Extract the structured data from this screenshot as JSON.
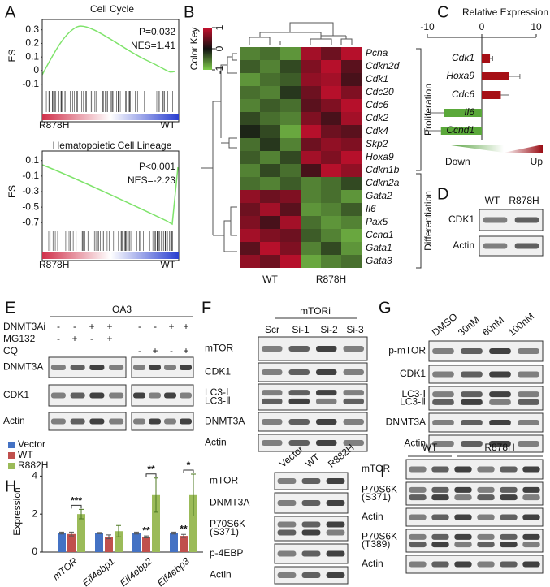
{
  "panels": {
    "A": {
      "letter": "A",
      "y_label": "ES",
      "plots": [
        {
          "title": "Cell Cycle",
          "p_value": "P=0.032",
          "nes": "NES=1.41",
          "ylim": [
            -0.12,
            0.34
          ],
          "yticks": [
            0.3,
            0.2,
            0.1,
            0,
            -0.1
          ],
          "left_group": "R878H",
          "right_group": "WT"
        },
        {
          "title": "Hematopoietic Cell Lineage",
          "p_value": "P<0.001",
          "nes": "NES=-2.23",
          "ylim": [
            -0.76,
            0.16
          ],
          "yticks": [
            0.1,
            -0.1,
            -0.3,
            -0.5,
            -0.7
          ],
          "left_group": "R878H",
          "right_group": "WT"
        }
      ]
    },
    "B": {
      "letter": "B",
      "color_key": {
        "title": "Color Key",
        "ticks": [
          1,
          0,
          -1
        ],
        "range": [
          -1,
          1
        ],
        "colors": {
          "high": "#c8102e",
          "mid": "#111111",
          "low": "#7fcd4b"
        }
      },
      "groups": [
        "WT",
        "R878H"
      ],
      "genes": [
        "Pcna",
        "Cdkn2d",
        "Cdk1",
        "Cdc20",
        "Cdc6",
        "Cdk2",
        "Cdk4",
        "Skp2",
        "Hoxa9",
        "Cdkn1b",
        "Cdkn2a",
        "Gata2",
        "Il6",
        "Pax5",
        "Ccnd1",
        "Gata1",
        "Gata3"
      ],
      "values": [
        [
          -0.6,
          -0.5,
          -0.7,
          0.8,
          0.5,
          0.9
        ],
        [
          -0.4,
          -0.6,
          -0.3,
          0.6,
          0.9,
          0.4
        ],
        [
          -0.7,
          -0.5,
          -0.4,
          0.7,
          0.8,
          0.3
        ],
        [
          -0.5,
          -0.6,
          -0.2,
          0.5,
          0.9,
          0.6
        ],
        [
          -0.6,
          -0.4,
          -0.5,
          0.4,
          0.6,
          0.9
        ],
        [
          -0.3,
          -0.5,
          -0.6,
          0.6,
          0.3,
          0.8
        ],
        [
          -0.1,
          -0.3,
          -0.8,
          0.9,
          0.5,
          0.4
        ],
        [
          -0.5,
          -0.2,
          -0.6,
          0.5,
          0.7,
          0.6
        ],
        [
          -0.4,
          -0.6,
          -0.3,
          0.8,
          0.6,
          0.9
        ],
        [
          -0.6,
          -0.3,
          -0.5,
          0.3,
          0.9,
          0.7
        ],
        [
          -0.5,
          -0.6,
          -0.4,
          -0.6,
          -0.5,
          -0.3
        ],
        [
          0.7,
          0.5,
          0.6,
          -0.6,
          -0.5,
          -0.7
        ],
        [
          0.5,
          0.8,
          0.4,
          -0.7,
          -0.6,
          -0.4
        ],
        [
          0.6,
          0.3,
          0.8,
          -0.5,
          -0.7,
          -0.6
        ],
        [
          0.8,
          0.6,
          0.5,
          -0.4,
          -0.6,
          -0.8
        ],
        [
          0.4,
          0.9,
          0.6,
          -0.6,
          -0.3,
          -0.7
        ],
        [
          0.7,
          0.5,
          0.9,
          -0.8,
          -0.6,
          -0.5
        ]
      ],
      "brackets": [
        "Proliferation",
        "Differentiation"
      ]
    },
    "C": {
      "letter": "C",
      "type": "bar",
      "title": "Relative Expression",
      "xlim": [
        -10,
        10
      ],
      "xticks": [
        -10,
        0,
        10
      ],
      "categories": [
        "Cdk1",
        "Hoxa9",
        "Cdc6",
        "Il6",
        "Ccnd1"
      ],
      "values": [
        1.5,
        5,
        3.5,
        -7,
        -7.5
      ],
      "errors": [
        0.5,
        2,
        1.5,
        2.5,
        3
      ],
      "up_color": "#a50f15",
      "down_color": "#5aa83a",
      "down_label": "Down",
      "up_label": "Up"
    },
    "D": {
      "letter": "D",
      "columns": [
        "WT",
        "R878H"
      ],
      "rows": [
        [
          "CDK1"
        ],
        [
          "Actin"
        ]
      ]
    },
    "E": {
      "letter": "E",
      "cell_line": "OA3",
      "conditions": [
        {
          "name": "DNMT3Ai",
          "signs": [
            "-",
            "-",
            "+",
            "+",
            "-",
            "-",
            "+",
            "+"
          ]
        },
        {
          "name": "MG132",
          "signs": [
            "-",
            "+",
            "-",
            "+",
            null,
            null,
            null,
            null
          ]
        },
        {
          "name": "CQ",
          "signs": [
            null,
            null,
            null,
            null,
            "-",
            "+",
            "-",
            "+"
          ]
        }
      ],
      "rows": [
        [
          "DNMT3A"
        ],
        [
          "CDK1"
        ],
        [
          "Actin"
        ]
      ]
    },
    "F": {
      "letter": "F",
      "treatment": "mTORi",
      "columns": [
        "Scr",
        "Si-1",
        "Si-2",
        "Si-3"
      ],
      "rows": [
        [
          "mTOR"
        ],
        [
          "CDK1"
        ],
        [
          "LC3-Ⅰ",
          "LC3-Ⅱ"
        ],
        [
          "DNMT3A"
        ],
        [
          "Actin"
        ]
      ]
    },
    "G": {
      "letter": "G",
      "columns": [
        "DMSO",
        "30nM",
        "60nM",
        "100nM"
      ],
      "rows": [
        [
          "p-mTOR"
        ],
        [
          "CDK1"
        ],
        [
          "LC3-Ⅰ",
          "LC3-Ⅱ"
        ],
        [
          "DNMT3A"
        ],
        [
          "Actin"
        ]
      ]
    },
    "H": {
      "letter": "H",
      "chart": {
        "type": "bar",
        "y_label": "Expression",
        "ylim": [
          0,
          4.4
        ],
        "yticks": [
          0,
          2,
          4
        ],
        "categories": [
          "mTOR",
          "Eif4ebp1",
          "Eif4ebp2",
          "Eif4ebp3"
        ],
        "series": [
          {
            "name": "Vector",
            "color": "#4472c4",
            "values": [
              1,
              1,
              1,
              1
            ],
            "errors": [
              0.05,
              0.03,
              0.05,
              0.05
            ]
          },
          {
            "name": "WT",
            "color": "#c0504d",
            "values": [
              0.95,
              0.8,
              0.8,
              0.85
            ],
            "errors": [
              0.1,
              0.1,
              0.05,
              0.08
            ]
          },
          {
            "name": "R882H",
            "color": "#9bbb59",
            "values": [
              2,
              1.1,
              3,
              3
            ],
            "errors": [
              0.25,
              0.3,
              0.9,
              1.1
            ]
          }
        ],
        "significance_wt": [
          null,
          null,
          "**",
          "**"
        ],
        "significance_r882h": [
          "***",
          null,
          "**",
          "*"
        ]
      },
      "blot": {
        "columns": [
          "Vector",
          "WT",
          "R882H"
        ],
        "rows": [
          [
            "mTOR"
          ],
          [
            "DNMT3A"
          ],
          [
            "P70S6K",
            "(S371)"
          ],
          [
            "p-4EBP"
          ],
          [
            "Actin"
          ]
        ]
      }
    },
    "I": {
      "letter": "I",
      "groups": [
        "WT",
        "R878H"
      ],
      "rows": [
        [
          "mTOR"
        ],
        [
          "P70S6K",
          "(S371)"
        ],
        [
          "Actin"
        ],
        [
          "P70S6K",
          "(T389)"
        ],
        [
          "Actin"
        ]
      ]
    }
  }
}
